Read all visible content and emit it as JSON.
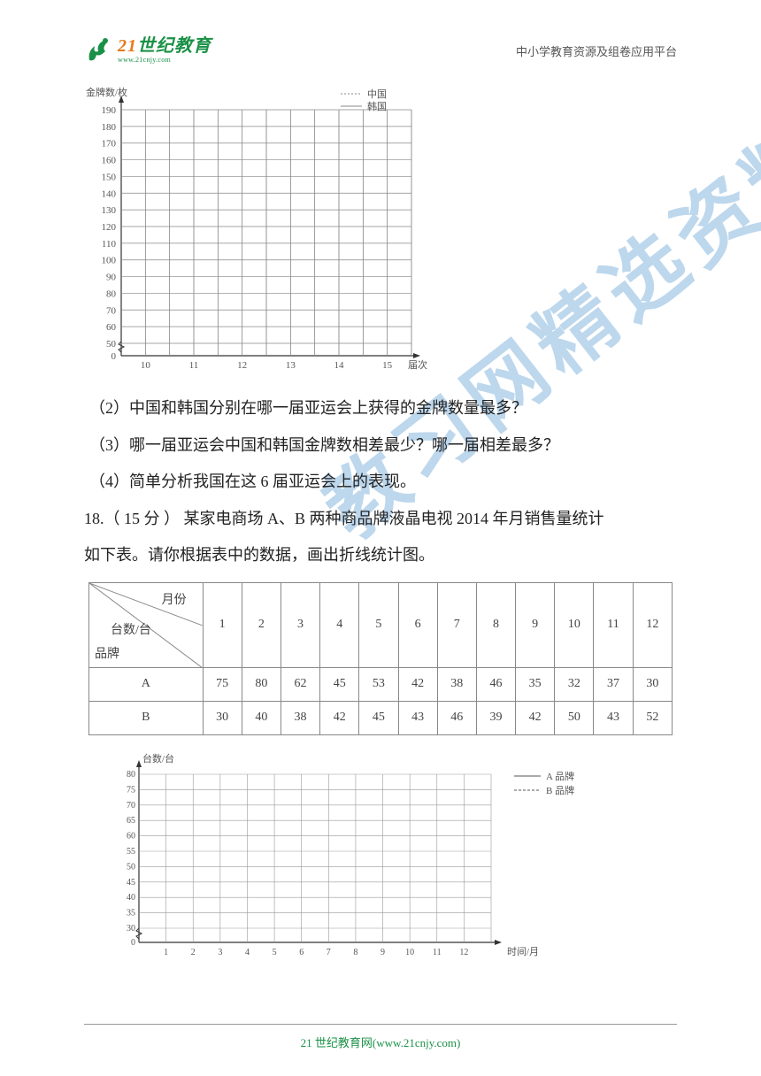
{
  "header": {
    "logo_num": "21",
    "logo_text": "世纪教育",
    "logo_sub": "www.21cnjy.com",
    "right": "中小学教育资源及组卷应用平台"
  },
  "watermark": "教习网精选资料",
  "chart1": {
    "type": "line-grid",
    "y_axis_title": "金牌数/枚",
    "x_axis_title": "届次",
    "ylim": [
      0,
      190
    ],
    "ytick_step": 10,
    "y_ticks": [
      0,
      50,
      60,
      70,
      80,
      90,
      100,
      110,
      120,
      130,
      140,
      150,
      160,
      170,
      180,
      190
    ],
    "x_ticks": [
      10,
      11,
      12,
      13,
      14,
      15
    ],
    "grid_color": "#888888",
    "axis_color": "#333333",
    "background_color": "#ffffff",
    "legend": [
      {
        "label": "中国",
        "style": "dashed",
        "color": "#888888"
      },
      {
        "label": "韩国",
        "style": "solid",
        "color": "#888888"
      }
    ]
  },
  "questions": {
    "q2": "（2）中国和韩国分别在哪一届亚运会上获得的金牌数量最多？",
    "q3": "（3）哪一届亚运会中国和韩国金牌数相差最少？哪一届相差最多？",
    "q4": "（4）简单分析我国在这 6 届亚运会上的表现。",
    "q18a": "18.（ 15 分 ） 某家电商场 A、B 两种商品牌液晶电视 2014 年月销售量统计",
    "q18b": "如下表。请你根据表中的数据，画出折线统计图。"
  },
  "table": {
    "header_top": "月份",
    "header_mid": "台数/台",
    "header_bot": "品牌",
    "months": [
      "1",
      "2",
      "3",
      "4",
      "5",
      "6",
      "7",
      "8",
      "9",
      "10",
      "11",
      "12"
    ],
    "rows": [
      {
        "label": "A",
        "values": [
          75,
          80,
          62,
          45,
          53,
          42,
          38,
          46,
          35,
          32,
          37,
          30
        ]
      },
      {
        "label": "B",
        "values": [
          30,
          40,
          38,
          42,
          45,
          43,
          46,
          39,
          42,
          50,
          43,
          52
        ]
      }
    ],
    "border_color": "#888888",
    "text_color": "#444444"
  },
  "chart2": {
    "type": "line-grid",
    "y_axis_title": "台数/台",
    "x_axis_title": "时间/月",
    "y_ticks": [
      0,
      30,
      35,
      40,
      45,
      50,
      55,
      60,
      65,
      70,
      75,
      80
    ],
    "x_ticks": [
      1,
      2,
      3,
      4,
      5,
      6,
      7,
      8,
      9,
      10,
      11,
      12
    ],
    "grid_color": "#999999",
    "axis_color": "#333333",
    "background_color": "#ffffff",
    "legend": [
      {
        "label": "A 品牌",
        "style": "solid",
        "color": "#555555"
      },
      {
        "label": "B 品牌",
        "style": "dashed",
        "color": "#555555"
      }
    ]
  },
  "footer": {
    "text_prefix": "21 世纪教育网",
    "url": "(www.21cnjy.com)"
  }
}
